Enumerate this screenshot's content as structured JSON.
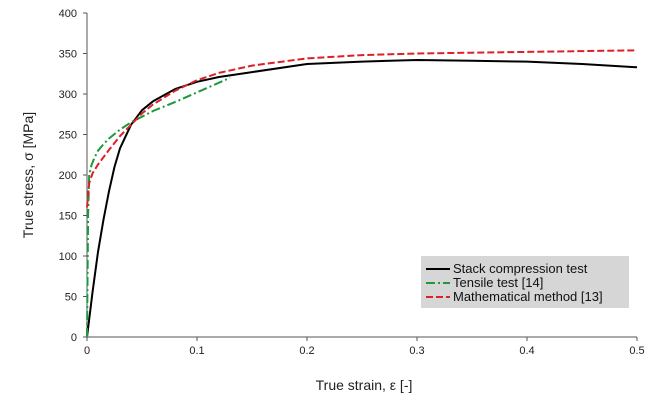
{
  "chart_data": {
    "type": "line",
    "xlabel": "True strain, ε [-]",
    "ylabel": "True stress, σ [MPa]",
    "xlim": [
      0,
      0.5
    ],
    "ylim": [
      0,
      400
    ],
    "x_ticks": [
      "0",
      "0.1",
      "0.2",
      "0.3",
      "0.4",
      "0.5"
    ],
    "y_ticks": [
      "0",
      "50",
      "100",
      "150",
      "200",
      "250",
      "300",
      "350",
      "400"
    ],
    "grid": "none",
    "legend_position": "bottom-right",
    "series": [
      {
        "name": "Stack compression test",
        "color": "#000000",
        "style": "solid",
        "x": [
          0,
          0.005,
          0.01,
          0.015,
          0.02,
          0.025,
          0.03,
          0.04,
          0.05,
          0.06,
          0.08,
          0.1,
          0.12,
          0.15,
          0.2,
          0.25,
          0.3,
          0.35,
          0.4,
          0.45,
          0.5
        ],
        "y": [
          0,
          55,
          105,
          145,
          180,
          210,
          233,
          262,
          280,
          291,
          306,
          315,
          321,
          327,
          337,
          340,
          342,
          341,
          340,
          337,
          333
        ]
      },
      {
        "name": "Tensile test [14]",
        "color": "#1a9a3a",
        "style": "dash-dot",
        "x": [
          0,
          0.001,
          0.002,
          0.004,
          0.007,
          0.01,
          0.015,
          0.02,
          0.03,
          0.04,
          0.05,
          0.06,
          0.08,
          0.1,
          0.12,
          0.13
        ],
        "y": [
          0,
          150,
          200,
          212,
          222,
          230,
          238,
          245,
          256,
          265,
          272,
          279,
          290,
          302,
          314,
          320
        ]
      },
      {
        "name": "Mathematical method [13]",
        "color": "#dd1f26",
        "style": "dashed",
        "x": [
          0,
          0.002,
          0.005,
          0.01,
          0.015,
          0.02,
          0.03,
          0.04,
          0.05,
          0.06,
          0.08,
          0.1,
          0.12,
          0.15,
          0.2,
          0.25,
          0.3,
          0.35,
          0.4,
          0.45,
          0.5
        ],
        "y": [
          160,
          190,
          202,
          213,
          222,
          231,
          248,
          262,
          276,
          287,
          304,
          317,
          326,
          335,
          344,
          348,
          350,
          351,
          352,
          353,
          354
        ]
      }
    ]
  }
}
